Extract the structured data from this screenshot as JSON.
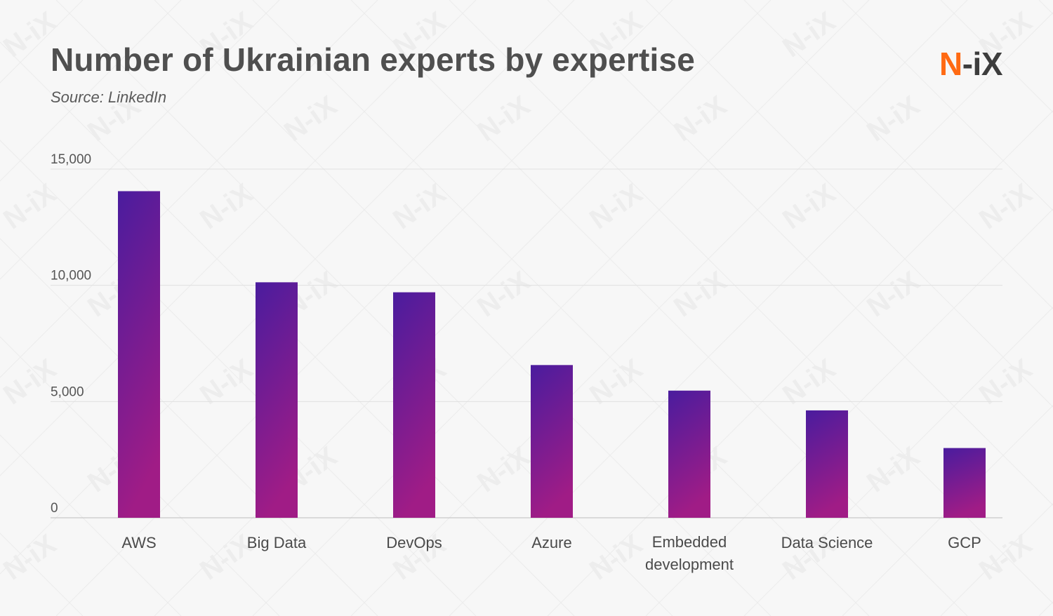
{
  "header": {
    "title": "Number of Ukrainian experts by expertise",
    "subtitle": "Source: LinkedIn"
  },
  "logo": {
    "text_n": "N",
    "text_rest": "-iX",
    "color_n": "#ff6a13",
    "color_rest": "#3d3d3d"
  },
  "watermark": {
    "text": "N-iX"
  },
  "colors": {
    "bar_top": "#4a1c9e",
    "bar_bottom": "#a01c86",
    "grid": "#e0e0e0",
    "axis": "#bdbdbd"
  },
  "chart_data": {
    "type": "bar",
    "title": "Number of Ukrainian experts by expertise",
    "subtitle": "Source: LinkedIn",
    "xlabel": "",
    "ylabel": "",
    "categories": [
      "AWS",
      "Big Data",
      "DevOps",
      "Azure",
      "Embedded development",
      "Data Science",
      "GCP"
    ],
    "category_lines": [
      [
        "AWS"
      ],
      [
        "Big Data"
      ],
      [
        "DevOps"
      ],
      [
        "Azure"
      ],
      [
        "Embedded",
        "development"
      ],
      [
        "Data Science"
      ],
      [
        "GCP"
      ]
    ],
    "values": [
      14050,
      10130,
      9700,
      6570,
      5470,
      4620,
      3000
    ],
    "ylim": [
      0,
      15000
    ],
    "yticks": [
      0,
      5000,
      10000,
      15000
    ],
    "ytick_labels": [
      "0",
      "5,000",
      "10,000",
      "15,000"
    ],
    "grid": true,
    "legend": "none"
  }
}
